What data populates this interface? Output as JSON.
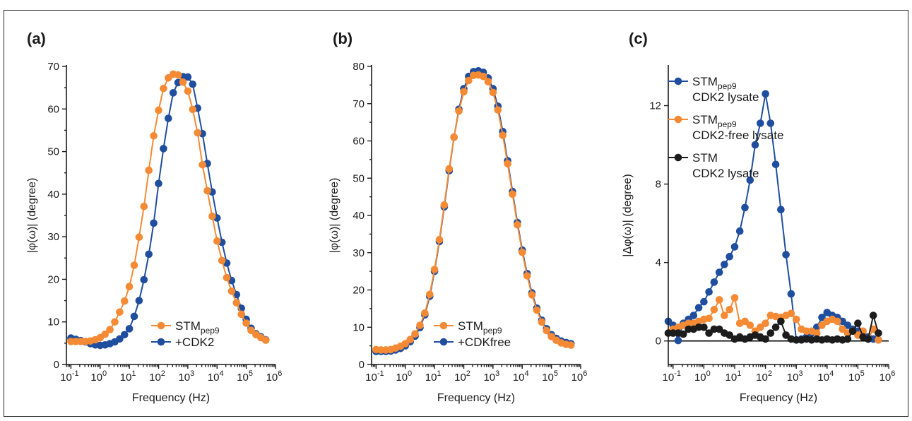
{
  "colors": {
    "orange": "#F58A34",
    "blue": "#1F4E9E",
    "black": "#1c1c1c"
  },
  "chart_data": [
    {
      "panel": "(a)",
      "type": "line",
      "xlabel": "Frequency (Hz)",
      "ylabel": "|φ(ω)| (degree)",
      "xscale": "log",
      "xlim": [
        0.07,
        1000000
      ],
      "ylim": [
        0,
        70
      ],
      "yticks": [
        0,
        10,
        20,
        30,
        40,
        50,
        60,
        70
      ],
      "xtick_exponents": [
        "-1",
        "0",
        "1",
        "2",
        "3",
        "4",
        "5",
        "6"
      ],
      "legend": "bottom-center",
      "series": [
        {
          "name": "STM",
          "name_sub": "pep9",
          "color": "orange",
          "x": [
            0.1,
            0.1468,
            0.2154,
            0.3162,
            0.4642,
            0.6813,
            1,
            1.468,
            2.154,
            3.162,
            4.642,
            6.813,
            10,
            14.68,
            21.54,
            31.62,
            46.42,
            68.13,
            100,
            146.8,
            215.4,
            316.2,
            464.2,
            681.3,
            1000,
            1468,
            2154,
            3162,
            4642,
            6813,
            10000,
            14680,
            21540,
            31620,
            46420,
            68130,
            100000,
            146800,
            215400,
            316200,
            464200
          ],
          "y": [
            5.4,
            5.4,
            5.4,
            5.4,
            5.5,
            5.8,
            6.3,
            7.1,
            8.2,
            10,
            12.3,
            14.9,
            18.3,
            23.3,
            29.9,
            37.1,
            45.6,
            53.7,
            59.7,
            64.8,
            67.3,
            68.2,
            68.0,
            66.3,
            64.2,
            59.9,
            54.4,
            46.9,
            40.8,
            34.8,
            29.0,
            24.4,
            20.4,
            17.2,
            14.5,
            11.8,
            9.7,
            8.0,
            7.0,
            6.3,
            5.7
          ]
        },
        {
          "name": "+CDK2",
          "color": "blue",
          "x": [
            0.1,
            0.1468,
            0.2154,
            0.3162,
            0.4642,
            0.6813,
            1,
            1.468,
            2.154,
            3.162,
            4.642,
            6.813,
            10,
            14.68,
            21.54,
            31.62,
            46.42,
            68.13,
            100,
            146.8,
            215.4,
            316.2,
            464.2,
            681.3,
            1000,
            1468,
            2154,
            3162,
            4642,
            6813,
            10000,
            14680,
            21540,
            31620,
            46420,
            68130,
            100000,
            146800,
            215400,
            316200,
            464200
          ],
          "y": [
            6.2,
            5.9,
            5.6,
            5.3,
            4.9,
            4.6,
            4.5,
            4.6,
            4.9,
            5.3,
            6.0,
            7.0,
            8.4,
            11.3,
            15.0,
            19.9,
            25.9,
            33.2,
            42.5,
            50.7,
            57.8,
            63.8,
            66.2,
            67.6,
            67.5,
            65.8,
            60.2,
            54.2,
            47.2,
            40.5,
            34.4,
            28.7,
            23.8,
            19.7,
            16.4,
            13.2,
            10.6,
            8.5,
            7.2,
            6.5,
            5.8
          ]
        }
      ]
    },
    {
      "panel": "(b)",
      "type": "line",
      "xlabel": "Frequency (Hz)",
      "ylabel": "|φ(ω)| (degree)",
      "xscale": "log",
      "xlim": [
        0.07,
        1000000
      ],
      "ylim": [
        0,
        80
      ],
      "yticks": [
        0,
        10,
        20,
        30,
        40,
        50,
        60,
        70,
        80
      ],
      "xtick_exponents": [
        "-1",
        "0",
        "1",
        "2",
        "3",
        "4",
        "5",
        "6"
      ],
      "legend": "bottom-right",
      "series": [
        {
          "name": "STM",
          "name_sub": "pep9",
          "color": "orange",
          "x": [
            0.1,
            0.1468,
            0.2154,
            0.3162,
            0.4642,
            0.6813,
            1,
            1.468,
            2.154,
            3.162,
            4.642,
            6.813,
            10,
            14.68,
            21.54,
            31.62,
            46.42,
            68.13,
            100,
            146.8,
            215.4,
            316.2,
            464.2,
            681.3,
            1000,
            1468,
            2154,
            3162,
            4642,
            6813,
            10000,
            14680,
            21540,
            31620,
            46420,
            68130,
            100000,
            146800,
            215400,
            316200,
            464200
          ],
          "y": [
            4.0,
            3.9,
            3.9,
            4.0,
            4.4,
            4.9,
            5.6,
            6.7,
            8.2,
            10.5,
            13.8,
            18.8,
            25.5,
            33.5,
            42.8,
            52.5,
            61.0,
            68.0,
            73.2,
            76.2,
            77.6,
            77.7,
            77.3,
            75.9,
            73.0,
            68.3,
            61.5,
            53.9,
            45.7,
            37.5,
            30.1,
            23.8,
            18.7,
            14.6,
            11.4,
            9.1,
            7.5,
            6.5,
            5.8,
            5.4,
            5.2
          ]
        },
        {
          "name": "+CDKfree",
          "color": "blue",
          "x": [
            0.1,
            0.1468,
            0.2154,
            0.3162,
            0.4642,
            0.6813,
            1,
            1.468,
            2.154,
            3.162,
            4.642,
            6.813,
            10,
            14.68,
            21.54,
            31.62,
            46.42,
            68.13,
            100,
            146.8,
            215.4,
            316.2,
            464.2,
            681.3,
            1000,
            1468,
            2154,
            3162,
            4642,
            6813,
            10000,
            14680,
            21540,
            31620,
            46420,
            68130,
            100000,
            146800,
            215400,
            316200,
            464200
          ],
          "y": [
            3.5,
            3.5,
            3.5,
            3.6,
            3.9,
            4.3,
            5.0,
            6.1,
            7.6,
            9.9,
            13.3,
            18.3,
            25.0,
            33.0,
            42.3,
            52.0,
            61.0,
            68.5,
            74.0,
            77.3,
            78.6,
            78.8,
            78.4,
            76.9,
            74.0,
            69.3,
            62.5,
            54.7,
            46.4,
            38.1,
            30.7,
            24.4,
            19.2,
            15.1,
            11.9,
            9.6,
            8.0,
            7.0,
            6.3,
            5.9,
            5.6
          ]
        }
      ]
    },
    {
      "panel": "(c)",
      "type": "line",
      "xlabel": "Frequency (Hz)",
      "ylabel": "|Δφ(ω)| (degree)",
      "xscale": "log",
      "xlim": [
        0.07,
        1000000
      ],
      "ylim": [
        -1.2,
        14
      ],
      "yticks": [
        0,
        4,
        8,
        12
      ],
      "xtick_exponents": [
        "-1",
        "0",
        "1",
        "2",
        "3",
        "4",
        "5",
        "6"
      ],
      "zero_line": true,
      "legend": "top-right",
      "series": [
        {
          "name": "STM",
          "name_sub": "pep9",
          "name_line2": "CDK2 lysate",
          "color": "blue",
          "x": [
            0.07,
            0.1,
            0.1468,
            0.2154,
            0.3162,
            0.4642,
            0.6813,
            1,
            1.468,
            2.154,
            3.162,
            4.642,
            6.813,
            10,
            14.68,
            21.54,
            31.62,
            46.42,
            68.13,
            100,
            146.8,
            215.4,
            316.2,
            464.2,
            681.3,
            1000,
            1468,
            2154,
            3162,
            4642,
            6813,
            10000,
            14680,
            21540,
            31620,
            46420,
            68130,
            100000,
            146800,
            215400,
            316200,
            464200
          ],
          "y": [
            1.0,
            0.8,
            0.02,
            0.9,
            1.1,
            1.3,
            1.7,
            2.0,
            2.5,
            3.0,
            3.5,
            3.9,
            4.3,
            4.8,
            5.6,
            6.8,
            8.2,
            10.0,
            11.1,
            12.6,
            11.1,
            9.0,
            6.7,
            4.4,
            2.4,
            0.05,
            0.1,
            0.2,
            0.4,
            0.7,
            1.2,
            1.45,
            1.3,
            1.2,
            1.0,
            0.8,
            0.6,
            0.5,
            0.3,
            0.2,
            0.1,
            0.05
          ]
        },
        {
          "name": "STM",
          "name_sub": "pep9",
          "name_line2": "CDK2-free lysate",
          "color": "orange",
          "x": [
            0.1,
            0.1468,
            0.2154,
            0.3162,
            0.4642,
            0.6813,
            1,
            1.468,
            2.154,
            3.162,
            4.642,
            6.813,
            10,
            14.68,
            21.54,
            31.62,
            46.42,
            68.13,
            100,
            146.8,
            215.4,
            316.2,
            464.2,
            681.3,
            1000,
            1468,
            2154,
            3162,
            4642,
            6813,
            10000,
            14680,
            21540,
            31620,
            46420,
            68130,
            100000,
            146800,
            215400,
            316200,
            464200
          ],
          "y": [
            0.6,
            0.7,
            0.8,
            0.9,
            0.9,
            1.0,
            1.1,
            1.15,
            1.6,
            2.1,
            1.3,
            1.6,
            2.2,
            0.9,
            1.0,
            0.8,
            0.5,
            0.7,
            0.9,
            1.3,
            1.25,
            1.2,
            1.3,
            1.4,
            1.1,
            0.6,
            0.5,
            0.5,
            0.4,
            0.8,
            1.0,
            1.1,
            1.0,
            0.6,
            0.4,
            0.5,
            0.3,
            0.5,
            0.1,
            0.6,
            0.05
          ]
        },
        {
          "name": "STM",
          "name_line2": "CDK2 lysate",
          "color": "black",
          "x": [
            0.07,
            0.1,
            0.1468,
            0.2154,
            0.3162,
            0.4642,
            0.6813,
            1,
            1.468,
            2.154,
            3.162,
            4.642,
            6.813,
            10,
            14.68,
            21.54,
            31.62,
            46.42,
            68.13,
            100,
            146.8,
            215.4,
            316.2,
            464.2,
            681.3,
            1000,
            1468,
            2154,
            3162,
            4642,
            6813,
            10000,
            14680,
            21540,
            31620,
            46420,
            68130,
            100000,
            146800,
            215400,
            316200,
            464200
          ],
          "y": [
            0.4,
            0.4,
            0.4,
            0.35,
            0.6,
            0.6,
            0.7,
            0.7,
            0.4,
            0.6,
            0.6,
            0.4,
            0.3,
            0.1,
            0.2,
            0.1,
            0.2,
            0.3,
            0.2,
            0.1,
            0.4,
            0.7,
            1.0,
            0.3,
            0.1,
            0.05,
            0.05,
            0.1,
            0.05,
            0.1,
            0.05,
            0.1,
            0.05,
            0.1,
            0.05,
            0.1,
            0.5,
            0.9,
            0.2,
            0.1,
            1.3,
            0.4
          ]
        }
      ]
    }
  ]
}
